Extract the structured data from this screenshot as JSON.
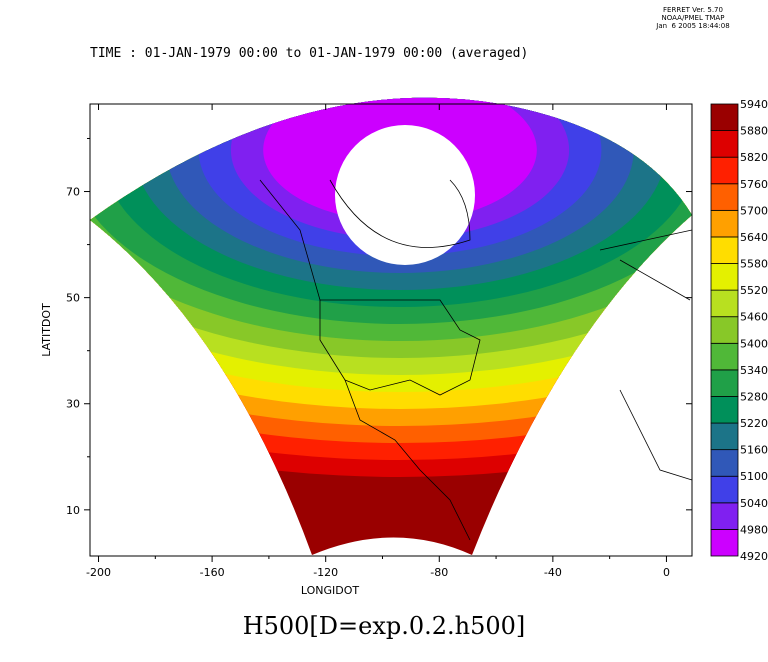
{
  "header": {
    "line1": "FERRET Ver. 5.70",
    "line2": "NOAA/PMEL TMAP",
    "line3": "Jan  6 2005 18:44:08"
  },
  "time_label": "TIME : 01-JAN-1979 00:00 to 01-JAN-1979 00:00 (averaged)",
  "chart_data": {
    "type": "heatmap",
    "title": "H500[D=exp.0.2.h500]",
    "xlabel": "LONGIDOT",
    "ylabel": "LATITDOT",
    "xlim": [
      -203,
      9
    ],
    "ylim": [
      1.3,
      86.5
    ],
    "xticks": [
      -200,
      -160,
      -120,
      -80,
      -40,
      0
    ],
    "yticks": [
      10,
      30,
      50,
      70
    ],
    "levels": [
      4920,
      4980,
      5040,
      5100,
      5160,
      5220,
      5280,
      5340,
      5400,
      5460,
      5520,
      5580,
      5640,
      5700,
      5760,
      5820,
      5880,
      5940
    ],
    "colors": [
      "#cc00ff",
      "#8020f0",
      "#4040e8",
      "#3058b8",
      "#1c7488",
      "#00905a",
      "#20a048",
      "#50b838",
      "#88c828",
      "#b8e020",
      "#e4f000",
      "#ffdd00",
      "#ffa000",
      "#ff6000",
      "#ff2000",
      "#dd0000",
      "#9a0000"
    ]
  }
}
